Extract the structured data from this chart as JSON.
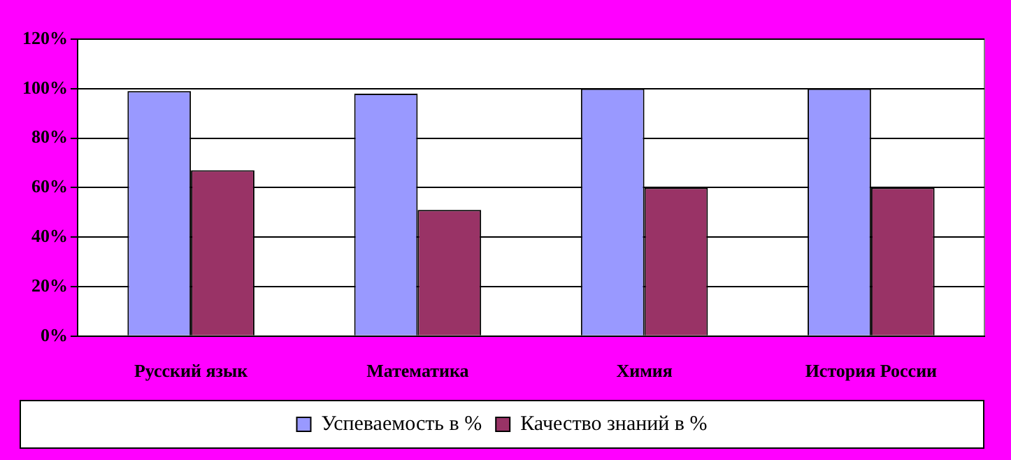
{
  "chart_data": {
    "type": "bar",
    "categories": [
      "Русский язык",
      "Математика",
      "Химия",
      "История России"
    ],
    "series": [
      {
        "name": "Успеваемость в %",
        "color": "#9999ff",
        "values": [
          99,
          98,
          100,
          100
        ]
      },
      {
        "name": "Качество знаний в %",
        "color": "#993366",
        "values": [
          67,
          51,
          60,
          60
        ]
      }
    ],
    "ylim": [
      0,
      120
    ],
    "yticks": [
      {
        "value": 0,
        "label": "0%"
      },
      {
        "value": 20,
        "label": "20%"
      },
      {
        "value": 40,
        "label": "40%"
      },
      {
        "value": 60,
        "label": "60%"
      },
      {
        "value": 80,
        "label": "80%"
      },
      {
        "value": 100,
        "label": "100%"
      },
      {
        "value": 120,
        "label": "120%"
      }
    ],
    "grid": "y",
    "legend": "bottom"
  }
}
